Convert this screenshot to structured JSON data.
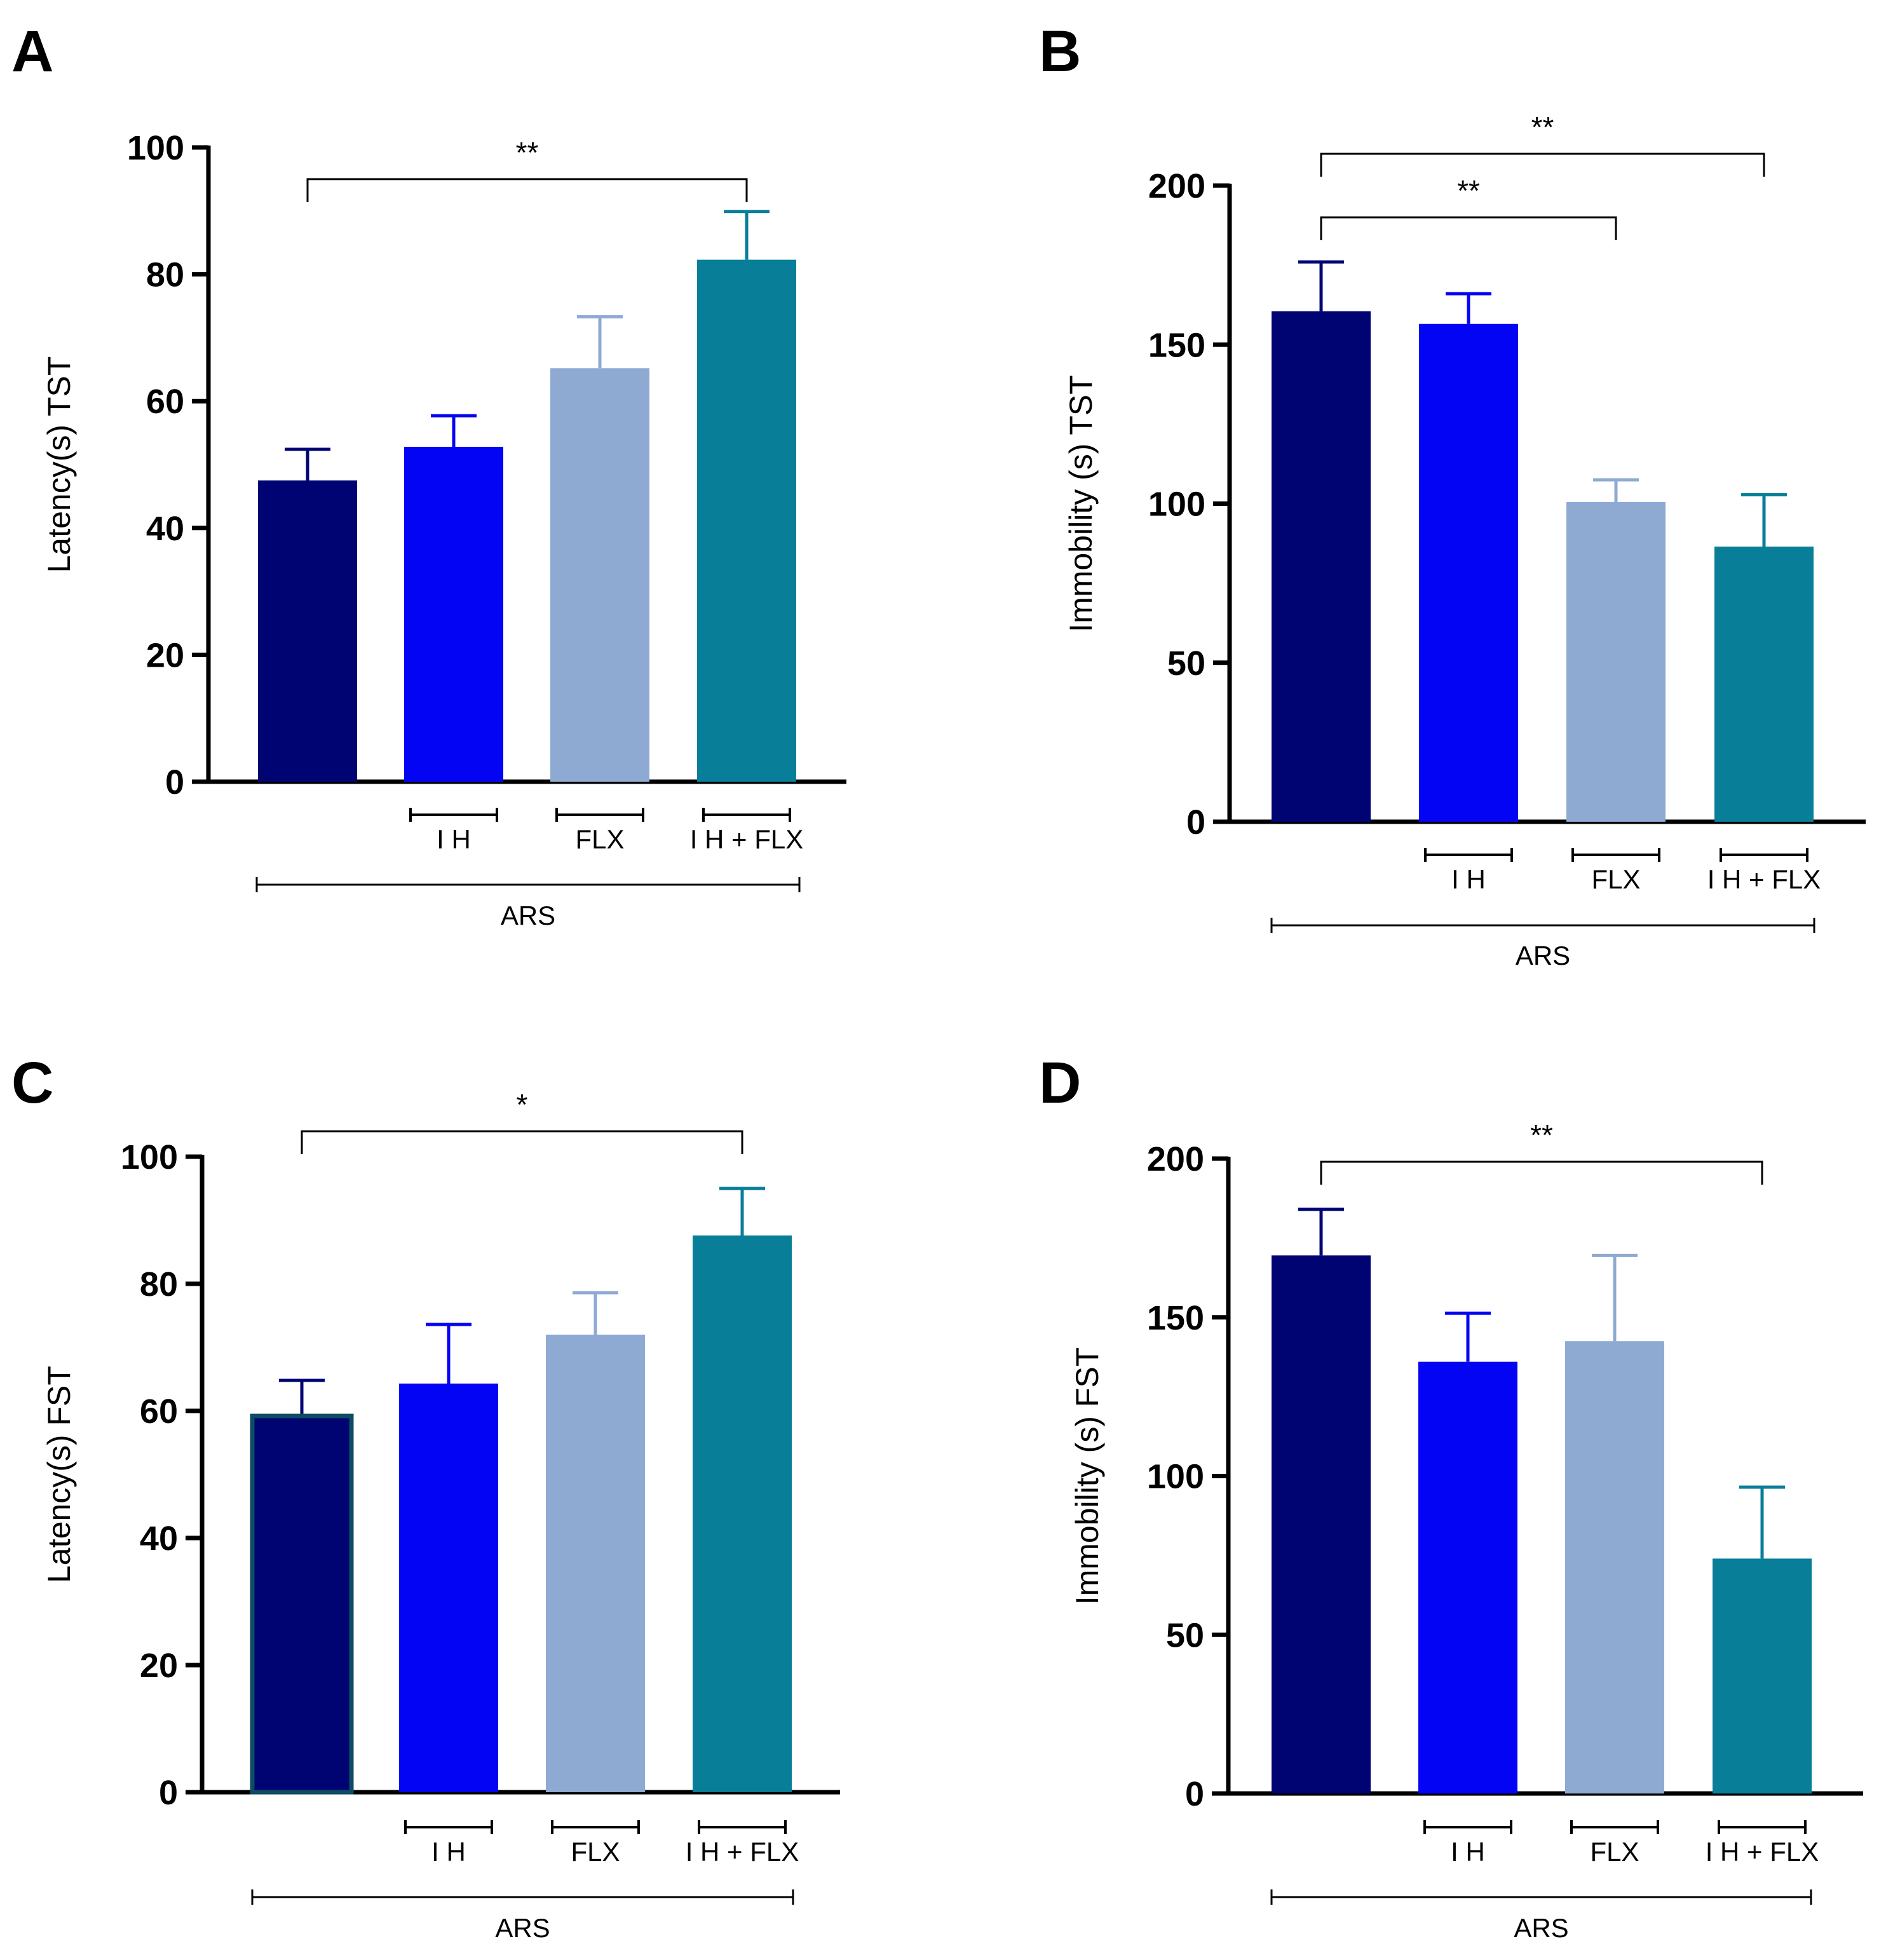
{
  "chart_data": [
    {
      "type": "bar",
      "panel": "A",
      "ylabel": "Latency(s) TST",
      "ylim": [
        0,
        100
      ],
      "yticks": [
        "0",
        "20",
        "40",
        "60",
        "80",
        "100"
      ],
      "categories": [
        "ARS",
        "ARS + IH",
        "ARS + FLX",
        "ARS + IH + FLX"
      ],
      "values": [
        47.5,
        52.8,
        65.2,
        82.3
      ],
      "errors": [
        4.9,
        4.9,
        8.1,
        7.6
      ],
      "colors": [
        "#000473",
        "#0404f4",
        "#8eaad3",
        "#087e99"
      ],
      "group_labels": [
        "",
        "I H",
        "FLX",
        "I H + FLX"
      ],
      "ars_label": "ARS",
      "significance": [
        {
          "from": 0,
          "to": 3,
          "label": "**",
          "level": 95
        }
      ]
    },
    {
      "type": "bar",
      "panel": "B",
      "ylabel": "Immobility (s) TST",
      "ylim": [
        0,
        200
      ],
      "yticks": [
        "0",
        "50",
        "100",
        "150",
        "200"
      ],
      "categories": [
        "ARS",
        "ARS + IH",
        "ARS + FLX",
        "ARS + IH + FLX"
      ],
      "values": [
        160.5,
        156.5,
        100.5,
        86.5
      ],
      "errors": [
        15.5,
        9.5,
        7.0,
        16.3
      ],
      "colors": [
        "#000473",
        "#0404f4",
        "#8eaad3",
        "#087e99"
      ],
      "group_labels": [
        "",
        "I H",
        "FLX",
        "I H + FLX"
      ],
      "ars_label": "ARS",
      "significance": [
        {
          "from": 0,
          "to": 3,
          "label": "**",
          "level": 210
        },
        {
          "from": 0,
          "to": 2,
          "label": "**",
          "level": 190
        }
      ]
    },
    {
      "type": "bar",
      "panel": "C",
      "ylabel": "Latency(s) FST",
      "ylim": [
        0,
        100
      ],
      "yticks": [
        "0",
        "20",
        "40",
        "60",
        "80",
        "100"
      ],
      "categories": [
        "ARS",
        "ARS + IH",
        "ARS + FLX",
        "ARS + IH + FLX"
      ],
      "values": [
        59.2,
        64.3,
        72.0,
        87.6
      ],
      "errors": [
        5.6,
        9.3,
        6.6,
        7.4
      ],
      "colors": [
        "#000473",
        "#0404f4",
        "#8eaad3",
        "#087e99"
      ],
      "group_labels": [
        "",
        "I H",
        "FLX",
        "I H + FLX"
      ],
      "ars_label": "ARS",
      "significance": [
        {
          "from": 0,
          "to": 3,
          "label": "*",
          "level": 104
        }
      ]
    },
    {
      "type": "bar",
      "panel": "D",
      "ylabel": "Immobility (s) FST",
      "ylim": [
        0,
        200
      ],
      "yticks": [
        "0",
        "50",
        "100",
        "150",
        "200"
      ],
      "categories": [
        "ARS",
        "ARS + IH",
        "ARS + FLX",
        "ARS + IH + FLX"
      ],
      "values": [
        169.5,
        136.0,
        142.5,
        74.0
      ],
      "errors": [
        14.5,
        15.3,
        27.0,
        22.5
      ],
      "colors": [
        "#000473",
        "#0404f4",
        "#8eaad3",
        "#087e99"
      ],
      "group_labels": [
        "",
        "I H",
        "FLX",
        "I H + FLX"
      ],
      "ars_label": "ARS",
      "significance": [
        {
          "from": 0,
          "to": 3,
          "label": "**",
          "level": 199
        }
      ]
    }
  ]
}
